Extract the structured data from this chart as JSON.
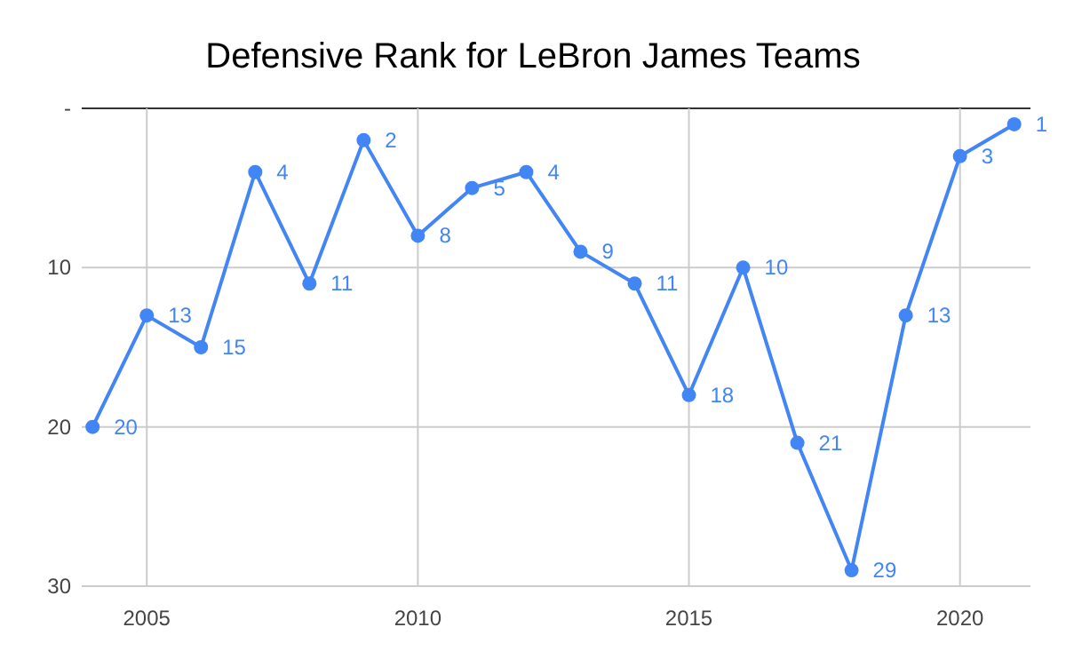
{
  "chart_data": {
    "type": "line",
    "title": "Defensive Rank for LeBron James Teams",
    "x": [
      2004,
      2005,
      2006,
      2007,
      2008,
      2009,
      2010,
      2011,
      2012,
      2013,
      2014,
      2015,
      2016,
      2017,
      2018,
      2019,
      2020,
      2021
    ],
    "series": [
      {
        "color": "#4285f4",
        "values": [
          20,
          13,
          15,
          4,
          11,
          2,
          8,
          5,
          4,
          9,
          11,
          18,
          10,
          21,
          29,
          13,
          3,
          1
        ]
      }
    ],
    "xlim": [
      2003.8,
      2021.3
    ],
    "xticks": [
      2005,
      2010,
      2015,
      2020
    ],
    "ylim": [
      30,
      0
    ],
    "yticks": [
      {
        "value": 0,
        "label": "-"
      },
      10,
      20,
      30
    ],
    "grid": true,
    "marker": "circle",
    "line_style": "solid",
    "data_labels": true
  }
}
